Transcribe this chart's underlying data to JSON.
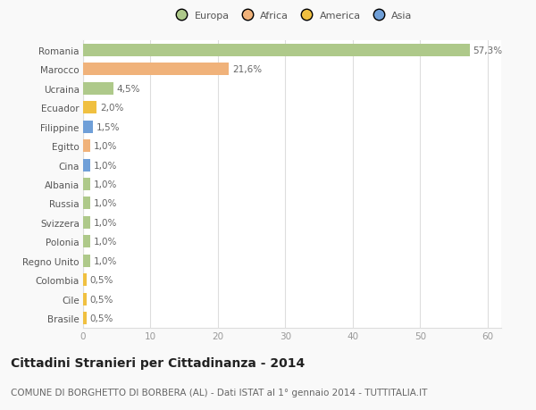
{
  "countries": [
    "Romania",
    "Marocco",
    "Ucraina",
    "Ecuador",
    "Filippine",
    "Egitto",
    "Cina",
    "Albania",
    "Russia",
    "Svizzera",
    "Polonia",
    "Regno Unito",
    "Colombia",
    "Cile",
    "Brasile"
  ],
  "values": [
    57.3,
    21.6,
    4.5,
    2.0,
    1.5,
    1.0,
    1.0,
    1.0,
    1.0,
    1.0,
    1.0,
    1.0,
    0.5,
    0.5,
    0.5
  ],
  "labels": [
    "57,3%",
    "21,6%",
    "4,5%",
    "2,0%",
    "1,5%",
    "1,0%",
    "1,0%",
    "1,0%",
    "1,0%",
    "1,0%",
    "1,0%",
    "1,0%",
    "0,5%",
    "0,5%",
    "0,5%"
  ],
  "colors": [
    "#aec98a",
    "#f0b27a",
    "#aec98a",
    "#f0c040",
    "#6f9fd8",
    "#f0b27a",
    "#6f9fd8",
    "#aec98a",
    "#aec98a",
    "#aec98a",
    "#aec98a",
    "#aec98a",
    "#f0c040",
    "#f0c040",
    "#f0c040"
  ],
  "legend_labels": [
    "Europa",
    "Africa",
    "America",
    "Asia"
  ],
  "legend_colors": [
    "#aec98a",
    "#f0b27a",
    "#f0c040",
    "#6f9fd8"
  ],
  "title": "Cittadini Stranieri per Cittadinanza - 2014",
  "subtitle": "COMUNE DI BORGHETTO DI BORBERA (AL) - Dati ISTAT al 1° gennaio 2014 - TUTTITALIA.IT",
  "xlim": [
    0,
    62
  ],
  "xticks": [
    0,
    10,
    20,
    30,
    40,
    50,
    60
  ],
  "bg_color": "#f9f9f9",
  "plot_bg_color": "#ffffff",
  "grid_color": "#dddddd",
  "bar_height": 0.65,
  "label_fontsize": 7.5,
  "tick_fontsize": 7.5,
  "title_fontsize": 10,
  "subtitle_fontsize": 7.5
}
